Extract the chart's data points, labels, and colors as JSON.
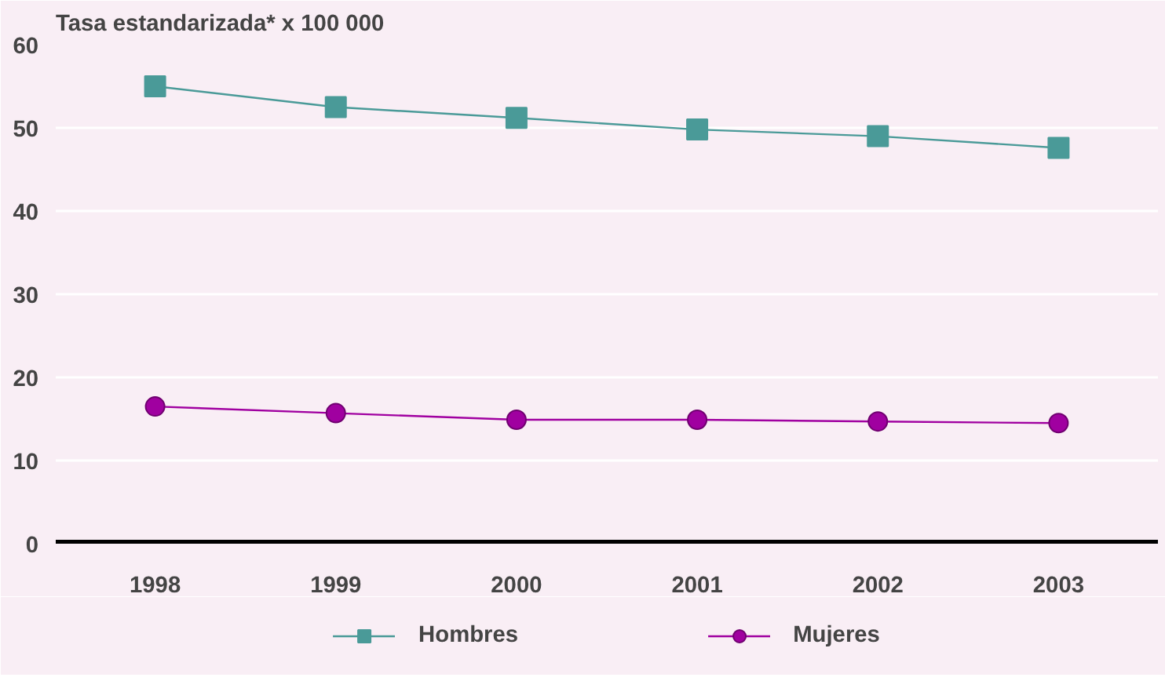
{
  "chart_data": {
    "type": "line",
    "ylabel": "Tasa estandarizada* x 100 000",
    "categories": [
      "1998",
      "1999",
      "2000",
      "2001",
      "2002",
      "2003"
    ],
    "series": [
      {
        "name": "Hombres",
        "color": "#4a9a98",
        "marker": "square",
        "values": [
          55.0,
          52.5,
          51.2,
          49.8,
          49.0,
          47.6
        ]
      },
      {
        "name": "Mujeres",
        "color": "#a000a0",
        "marker": "circle",
        "values": [
          16.5,
          15.7,
          14.9,
          14.9,
          14.7,
          14.5
        ]
      }
    ],
    "ylim": [
      0,
      60
    ],
    "yticks": [
      0,
      10,
      20,
      30,
      40,
      50,
      60
    ],
    "grid": "y",
    "legend": "bottom",
    "line_style": "solid"
  }
}
